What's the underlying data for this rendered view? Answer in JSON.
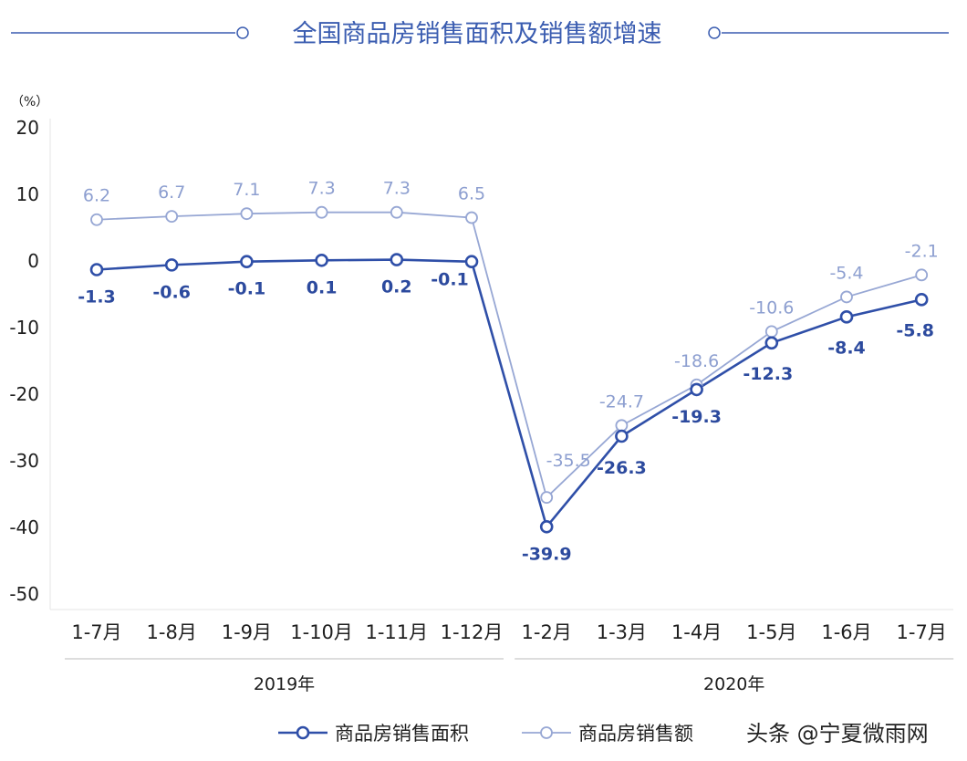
{
  "chart_data": {
    "type": "line",
    "title": "全国商品房销售面积及销售额增速",
    "unit": "（%）",
    "categories": [
      "1-7月",
      "1-8月",
      "1-9月",
      "1-10月",
      "1-11月",
      "1-12月",
      "1-2月",
      "1-3月",
      "1-4月",
      "1-5月",
      "1-6月",
      "1-7月"
    ],
    "groups": [
      {
        "label": "2019年",
        "from": 0,
        "to": 5
      },
      {
        "label": "2020年",
        "from": 6,
        "to": 11
      }
    ],
    "series": [
      {
        "name": "商品房销售面积",
        "values": [
          -1.3,
          -0.6,
          -0.1,
          0.1,
          0.2,
          -0.1,
          -39.9,
          -26.3,
          -19.3,
          -12.3,
          -8.4,
          -5.8
        ],
        "labels": [
          "-1.3",
          "-0.6",
          "-0.1",
          "0.1",
          "0.2",
          "-0.1",
          "-39.9",
          "-26.3",
          "-19.3",
          "-12.3",
          "-8.4",
          "-5.8"
        ],
        "color": "#2f4fa8"
      },
      {
        "name": "商品房销售额",
        "values": [
          6.2,
          6.7,
          7.1,
          7.3,
          7.3,
          6.5,
          -35.5,
          -24.7,
          -18.6,
          -10.6,
          -5.4,
          -2.1
        ],
        "labels": [
          "6.2",
          "6.7",
          "7.1",
          "7.3",
          "7.3",
          "6.5",
          "-35.5",
          "-24.7",
          "-18.6",
          "-10.6",
          "-5.4",
          "-2.1"
        ],
        "color": "#97a7d4"
      }
    ],
    "yticks": [
      20,
      10,
      0,
      -10,
      -20,
      -30,
      -40,
      -50
    ],
    "ylim": [
      -50,
      20
    ],
    "grid": false,
    "legend": "bottom"
  },
  "watermark": "头条 @宁夏微雨网"
}
